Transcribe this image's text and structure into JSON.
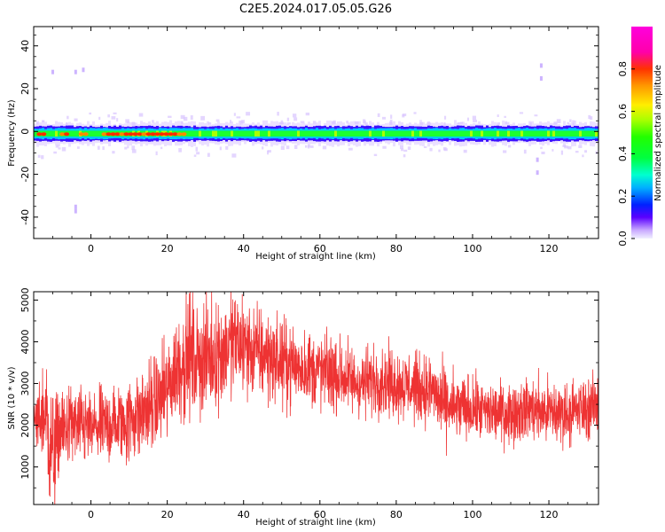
{
  "figure": {
    "title": "C2E5.2024.017.05.05.G26"
  },
  "chart_data": [
    {
      "type": "heatmap",
      "xlabel": "Height of straight line (km)",
      "ylabel": "Frequency (Hz)",
      "xlim": [
        -15,
        133
      ],
      "ylim": [
        -50,
        49
      ],
      "xticks": [
        0,
        20,
        40,
        60,
        80,
        100,
        120
      ],
      "yticks": [
        -40,
        -20,
        0,
        20,
        40
      ],
      "colorbar": {
        "label": "Normalized spectral amplitude",
        "range": [
          0,
          1
        ],
        "ticks": [
          0.0,
          0.2,
          0.4,
          0.6,
          0.8
        ],
        "colormap": "gist_ncar-like: blue → cyan → green → yellow → red → magenta, with very low values in pale violet"
      },
      "ridge": {
        "center_frequency_hz": -1,
        "core_half_width_hz": 1.5,
        "halo_half_width_hz": 4,
        "description": "Narrow band near 0 Hz spanning entire height range; strongest (red, ~0.8) at about 2–25 km and near -12 to -2 km, green/cyan (0.3–0.5) elsewhere, faint violet noise above and below",
        "hot_segments_km": [
          [
            -14,
            -12
          ],
          [
            -8,
            -6
          ],
          [
            -3,
            -1
          ],
          [
            3,
            25
          ]
        ],
        "scattered_features": [
          {
            "x": -2,
            "y": 29
          },
          {
            "x": -4,
            "y": 28
          },
          {
            "x": -10,
            "y": 28
          },
          {
            "x": -4,
            "y": -35
          },
          {
            "x": -4,
            "y": -37
          },
          {
            "x": 118,
            "y": 31
          },
          {
            "x": 118,
            "y": 25
          },
          {
            "x": 117,
            "y": -19
          },
          {
            "x": 117,
            "y": -13
          }
        ]
      }
    },
    {
      "type": "line",
      "xlabel": "Height of straight line (km)",
      "ylabel": "SNR (10 * v/v)",
      "xlim": [
        -15,
        133
      ],
      "ylim": [
        100,
        5200
      ],
      "xticks": [
        0,
        20,
        40,
        60,
        80,
        100,
        120
      ],
      "yticks": [
        1000,
        2000,
        3000,
        4000,
        5000
      ],
      "color": "#ee3333",
      "trend": {
        "description": "Noisy SNR trace: ~2000 near -15 km, dips to ~1000 near -10 km, rises steadily to peak ~3800-5000 around 25-45 km, declines to ~3000 near 70-90 km, ~2300 from 95 to 133 km",
        "x": [
          -15,
          -12,
          -10,
          -8,
          -5,
          0,
          5,
          10,
          15,
          20,
          22,
          25,
          30,
          35,
          38,
          40,
          45,
          50,
          55,
          60,
          65,
          70,
          75,
          80,
          85,
          90,
          92,
          95,
          100,
          105,
          110,
          115,
          120,
          125,
          130,
          133
        ],
        "y": [
          2000,
          2300,
          1200,
          1900,
          2000,
          1900,
          2000,
          2100,
          2400,
          2800,
          3300,
          3600,
          3600,
          3800,
          4000,
          3900,
          3700,
          3500,
          3400,
          3300,
          3200,
          3000,
          3100,
          3000,
          2900,
          2800,
          2500,
          2400,
          2400,
          2300,
          2300,
          2400,
          2300,
          2300,
          2400,
          2500
        ],
        "noise_amplitude": [
          300,
          700,
          900,
          500,
          500,
          500,
          500,
          550,
          600,
          650,
          700,
          800,
          700,
          700,
          700,
          650,
          600,
          550,
          500,
          500,
          500,
          450,
          450,
          450,
          450,
          450,
          500,
          450,
          400,
          400,
          400,
          400,
          450,
          400,
          400,
          400
        ]
      }
    }
  ]
}
